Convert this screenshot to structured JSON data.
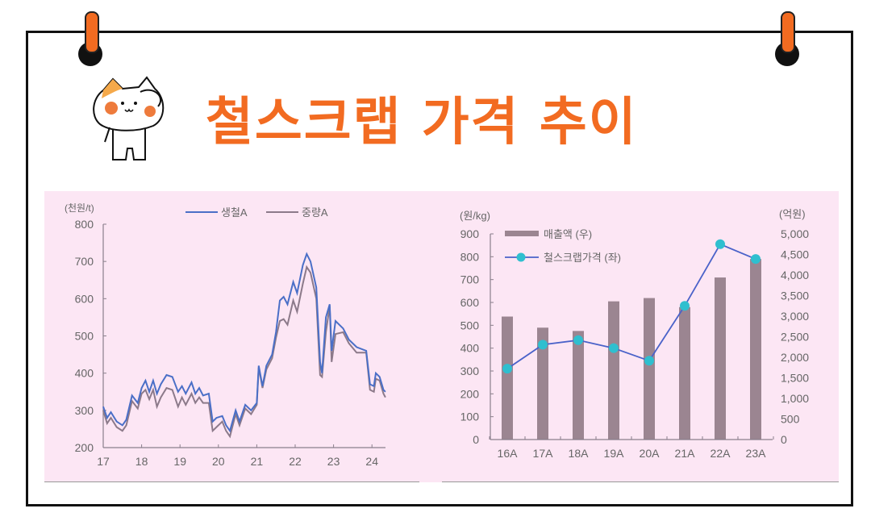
{
  "title": "철스크랩 가격 추이",
  "colors": {
    "accent": "#f26b21",
    "panel": "#fce6f4",
    "series_pig_iron": "#4a6fc7",
    "series_heavy": "#8c7a8a",
    "bar": "#9b8591",
    "line": "#4a62c9",
    "marker": "#2fbfcf"
  },
  "icons": {
    "mascot": "cat-saluting-icon",
    "pins": "push-pin-icon"
  },
  "chart_data": [
    {
      "type": "line",
      "ylabel": "(천원/t)",
      "ylim": [
        200,
        800
      ],
      "yticks": [
        "200",
        "300",
        "400",
        "500",
        "600",
        "700",
        "800"
      ],
      "xlim": [
        17,
        24.35
      ],
      "xticks": [
        "17",
        "18",
        "19",
        "20",
        "21",
        "22",
        "23",
        "24"
      ],
      "legend_placement": "top",
      "grid": false,
      "x": [
        17.0,
        17.1,
        17.2,
        17.35,
        17.5,
        17.6,
        17.75,
        17.9,
        18.0,
        18.1,
        18.2,
        18.3,
        18.4,
        18.5,
        18.65,
        18.8,
        18.95,
        19.05,
        19.15,
        19.3,
        19.4,
        19.5,
        19.6,
        19.75,
        19.85,
        19.95,
        20.1,
        20.2,
        20.3,
        20.45,
        20.55,
        20.7,
        20.85,
        21.0,
        21.05,
        21.15,
        21.25,
        21.4,
        21.5,
        21.6,
        21.7,
        21.8,
        21.95,
        22.05,
        22.2,
        22.3,
        22.4,
        22.55,
        22.65,
        22.7,
        22.8,
        22.9,
        22.95,
        23.05,
        23.25,
        23.4,
        23.6,
        23.85,
        23.95,
        24.05,
        24.1,
        24.2,
        24.3,
        24.35
      ],
      "series": [
        {
          "name": "생철A",
          "color": "#4a6fc7",
          "values": [
            310,
            280,
            295,
            270,
            260,
            275,
            340,
            320,
            360,
            380,
            350,
            380,
            345,
            370,
            395,
            390,
            350,
            365,
            345,
            375,
            345,
            360,
            340,
            345,
            270,
            280,
            285,
            260,
            245,
            300,
            270,
            315,
            300,
            320,
            420,
            365,
            420,
            450,
            510,
            595,
            605,
            585,
            645,
            615,
            690,
            720,
            700,
            630,
            430,
            400,
            550,
            585,
            460,
            540,
            520,
            490,
            470,
            460,
            370,
            365,
            400,
            390,
            355,
            350
          ]
        },
        {
          "name": "중량A",
          "color": "#8c7a8a",
          "values": [
            300,
            265,
            280,
            255,
            245,
            260,
            325,
            305,
            345,
            355,
            330,
            355,
            310,
            335,
            360,
            355,
            310,
            335,
            315,
            345,
            320,
            335,
            320,
            320,
            245,
            255,
            270,
            245,
            230,
            290,
            260,
            305,
            290,
            315,
            415,
            360,
            410,
            440,
            495,
            540,
            545,
            530,
            595,
            565,
            640,
            685,
            670,
            600,
            395,
            390,
            510,
            580,
            430,
            505,
            510,
            480,
            455,
            455,
            355,
            350,
            385,
            380,
            345,
            335
          ]
        }
      ]
    },
    {
      "type": "bar+line",
      "ylabel_left": "(원/kg)",
      "ylabel_right": "(억원)",
      "ylim_left": [
        0,
        900
      ],
      "ylim_right": [
        0,
        5000
      ],
      "yticks_left": [
        "0",
        "100",
        "200",
        "300",
        "400",
        "500",
        "600",
        "700",
        "800",
        "900"
      ],
      "yticks_right": [
        "0",
        "500",
        "1,000",
        "1,500",
        "2,000",
        "2,500",
        "3,000",
        "3,500",
        "4,000",
        "4,500",
        "5,000"
      ],
      "categories": [
        "16A",
        "17A",
        "18A",
        "19A",
        "20A",
        "21A",
        "22A",
        "23A"
      ],
      "legend_placement": "top-left",
      "grid": false,
      "series": [
        {
          "name": "매출액 (우)",
          "type": "bar",
          "axis": "right",
          "color": "#9b8591",
          "values": [
            2990,
            2720,
            2640,
            3360,
            3440,
            3220,
            3940,
            4390
          ]
        },
        {
          "name": "철스크랩가격 (좌)",
          "type": "line",
          "axis": "left",
          "color": "#4a62c9",
          "marker_color": "#2fbfcf",
          "values": [
            310,
            415,
            435,
            400,
            345,
            585,
            855,
            790
          ]
        }
      ]
    }
  ]
}
